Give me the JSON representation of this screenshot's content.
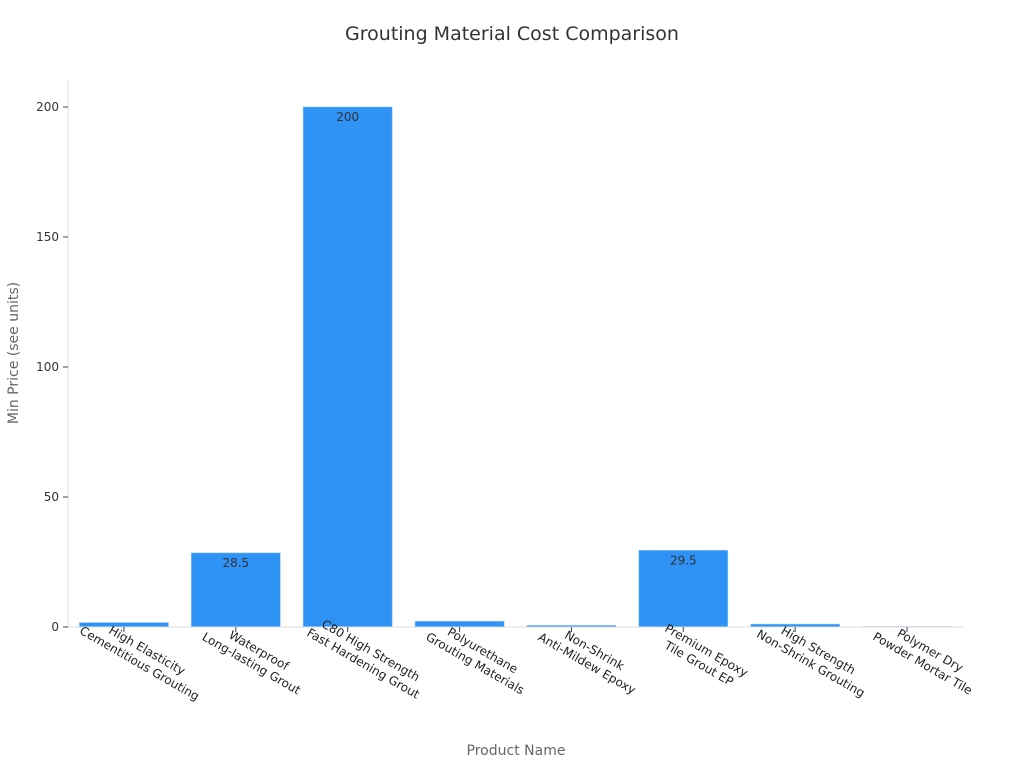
{
  "chart_data": {
    "type": "bar",
    "title": "Grouting Material Cost Comparison",
    "xlabel": "Product Name",
    "ylabel": "Min Price (see units)",
    "ylim": [
      0,
      210
    ],
    "yticks": [
      0,
      50,
      100,
      150,
      200
    ],
    "grid": false,
    "bar_color": "#2e93f5",
    "categories": [
      [
        "High Elasticity",
        "Cementitious Grouting"
      ],
      [
        "Waterproof",
        "Long-lasting Grout"
      ],
      [
        "C80 High Strength",
        "Fast Hardening Grout"
      ],
      [
        "Polyurethane",
        "Grouting Materials"
      ],
      [
        "Non-Shrink",
        "Anti-Mildew Epoxy"
      ],
      [
        "Premium Epoxy",
        "Tile Grout EP"
      ],
      [
        "High Strength",
        "Non-Shrink Grouting"
      ],
      [
        "Polymer Dry",
        "Powder Mortar Tile"
      ]
    ],
    "values": [
      1.7,
      28.5,
      200,
      2.2,
      0.6,
      29.5,
      1.1,
      0.2
    ],
    "data_labels": [
      "",
      "28.5",
      "200",
      "",
      "",
      "29.5",
      "",
      ""
    ]
  }
}
